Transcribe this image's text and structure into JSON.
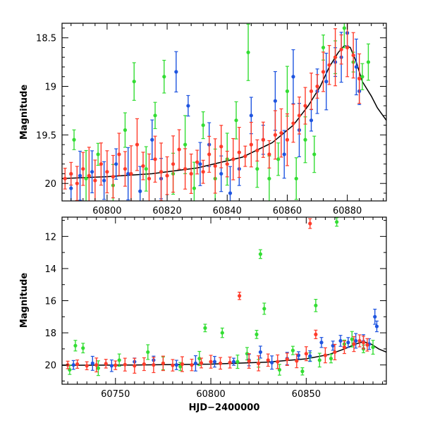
{
  "colors": {
    "green": "#33dd33",
    "blue": "#1f55e0",
    "red": "#ff3b2a",
    "model": "#000000"
  },
  "chart_data": [
    {
      "type": "scatter",
      "panel": "top",
      "xlim": [
        60785,
        60893
      ],
      "ylim": [
        20.18,
        18.35
      ],
      "inverted_y": true,
      "ylabel": "Magnitude",
      "xlabel": "",
      "xticks": [
        60800,
        60820,
        60840,
        60860,
        60880
      ],
      "yticks": [
        18.5,
        19,
        19.5,
        20
      ],
      "model_curve": {
        "x": [
          60785,
          60800,
          60815,
          60830,
          60845,
          60855,
          60862,
          60867,
          60871,
          60874,
          60877,
          60879,
          60881,
          60883,
          60885,
          60888,
          60890,
          60893
        ],
        "y": [
          19.95,
          19.93,
          19.9,
          19.84,
          19.73,
          19.58,
          19.4,
          19.2,
          19.0,
          18.8,
          18.65,
          18.58,
          18.6,
          18.75,
          18.95,
          19.1,
          19.22,
          19.35
        ]
      },
      "series": [
        {
          "color": "green",
          "x": [
            60789,
            60793,
            60797,
            60802,
            60806,
            60809,
            60813,
            60816,
            60819,
            60822,
            60826,
            60829,
            60832,
            60836,
            60840,
            60843,
            60847,
            60850,
            60854,
            60857,
            60860,
            60863,
            60866,
            60869,
            60872,
            60876,
            60879,
            60882,
            60885,
            60887
          ],
          "y": [
            19.55,
            19.95,
            19.7,
            20.02,
            19.45,
            18.95,
            19.85,
            19.3,
            18.9,
            19.9,
            19.6,
            20.05,
            19.4,
            19.95,
            19.75,
            19.35,
            18.65,
            19.85,
            19.95,
            19.75,
            19.05,
            19.95,
            19.55,
            19.7,
            18.6,
            18.7,
            18.4,
            18.75,
            18.9,
            18.75
          ]
        },
        {
          "color": "blue",
          "x": [
            60788,
            60791,
            60795,
            60799,
            60803,
            60807,
            60811,
            60815,
            60818,
            60823,
            60827,
            60831,
            60834,
            60838,
            60841,
            60844,
            60848,
            60852,
            60856,
            60859,
            60862,
            60864,
            60868,
            60870,
            60873,
            60876,
            60878,
            60880,
            60883,
            60884
          ],
          "y": [
            20.05,
            19.92,
            19.88,
            19.97,
            19.8,
            19.9,
            20.08,
            19.55,
            19.95,
            18.85,
            19.2,
            19.8,
            19.6,
            19.9,
            20.1,
            19.85,
            19.3,
            19.55,
            19.15,
            19.7,
            18.9,
            19.45,
            19.35,
            19.05,
            18.95,
            18.75,
            18.7,
            18.45,
            18.8,
            19.05
          ]
        },
        {
          "color": "red",
          "x": [
            60786,
            60788,
            60790,
            60792,
            60794,
            60796,
            60798,
            60800,
            60802,
            60804,
            60806,
            60808,
            60810,
            60812,
            60814,
            60816,
            60818,
            60820,
            60822,
            60824,
            60826,
            60828,
            60830,
            60832,
            60834,
            60836,
            60838,
            60840,
            60842,
            60844,
            60846,
            60848,
            60850,
            60852,
            60854,
            60856,
            60858,
            60860,
            60862,
            60864,
            60866,
            60868,
            60870,
            60872,
            60874,
            60876,
            60878,
            60880,
            60882,
            60884
          ],
          "y": [
            19.95,
            19.9,
            20.0,
            19.85,
            19.92,
            19.97,
            19.8,
            19.88,
            19.93,
            19.7,
            19.85,
            19.9,
            19.6,
            19.82,
            19.95,
            19.75,
            19.88,
            19.92,
            19.8,
            19.65,
            19.85,
            19.9,
            19.78,
            19.88,
            19.7,
            19.82,
            19.62,
            19.8,
            19.75,
            19.68,
            19.72,
            19.6,
            19.66,
            19.55,
            19.7,
            19.5,
            19.48,
            19.55,
            19.38,
            19.3,
            19.2,
            19.05,
            19.0,
            18.85,
            18.78,
            18.7,
            18.62,
            18.6,
            18.68,
            18.92
          ]
        }
      ]
    },
    {
      "type": "scatter",
      "panel": "bottom",
      "xlim": [
        60722,
        60892
      ],
      "ylim": [
        21.2,
        10.8
      ],
      "inverted_y": true,
      "ylabel": "Magnitude",
      "xlabel": "HJD−2400000",
      "xticks": [
        60750,
        60800,
        60850
      ],
      "yticks": [
        12,
        14,
        16,
        18,
        20
      ],
      "model_curve": {
        "x": [
          60722,
          60760,
          60800,
          60830,
          60850,
          60862,
          60870,
          60876,
          60880,
          60884,
          60888,
          60892
        ],
        "y": [
          20.02,
          20.0,
          19.95,
          19.82,
          19.62,
          19.35,
          19.0,
          18.7,
          18.55,
          18.7,
          19.0,
          19.2
        ]
      },
      "series": [
        {
          "color": "green",
          "x": [
            60726,
            60729,
            60733,
            60741,
            60752,
            60767,
            60775,
            60784,
            60794,
            60797,
            60806,
            60814,
            60819,
            60824,
            60825,
            60826,
            60828,
            60836,
            60843,
            60848,
            60852,
            60855,
            60857,
            60863,
            60866,
            60870,
            60874,
            60880,
            60885
          ],
          "y": [
            20.3,
            18.8,
            18.95,
            20.2,
            19.7,
            19.2,
            19.9,
            20.1,
            19.6,
            17.7,
            18.0,
            19.8,
            19.3,
            18.1,
            19.9,
            13.1,
            16.5,
            20.3,
            19.1,
            20.4,
            19.5,
            16.3,
            19.7,
            19.6,
            11.1,
            18.7,
            18.4,
            19.0,
            18.9
          ]
        },
        {
          "color": "blue",
          "x": [
            60728,
            60738,
            60748,
            60760,
            60770,
            60782,
            60792,
            60802,
            60812,
            60820,
            60826,
            60832,
            60840,
            60846,
            60852,
            60858,
            60864,
            60868,
            60872,
            60876,
            60880,
            60883,
            60886,
            60887
          ],
          "y": [
            20.0,
            19.9,
            20.05,
            19.8,
            19.7,
            20.0,
            19.9,
            19.8,
            19.8,
            19.7,
            19.2,
            19.85,
            19.6,
            19.4,
            19.45,
            18.6,
            18.8,
            18.5,
            18.6,
            18.5,
            18.55,
            18.7,
            17.0,
            17.6
          ]
        },
        {
          "color": "red",
          "x": [
            60725,
            60730,
            60735,
            60740,
            60745,
            60750,
            60755,
            60760,
            60765,
            60770,
            60775,
            60780,
            60785,
            60790,
            60795,
            60800,
            60805,
            60810,
            60815,
            60820,
            60825,
            60830,
            60835,
            60840,
            60845,
            60850,
            60852,
            60855,
            60860,
            60865,
            60870,
            60875,
            60878,
            60880,
            60882
          ],
          "y": [
            20.0,
            19.95,
            20.05,
            20.0,
            19.92,
            20.02,
            19.98,
            20.05,
            19.95,
            20.0,
            19.9,
            20.02,
            19.95,
            20.0,
            19.88,
            19.8,
            19.9,
            19.85,
            15.7,
            19.75,
            19.9,
            19.7,
            19.8,
            19.65,
            19.75,
            19.3,
            11.2,
            18.1,
            19.4,
            19.2,
            18.9,
            18.7,
            18.5,
            18.6,
            18.75
          ]
        }
      ]
    }
  ]
}
